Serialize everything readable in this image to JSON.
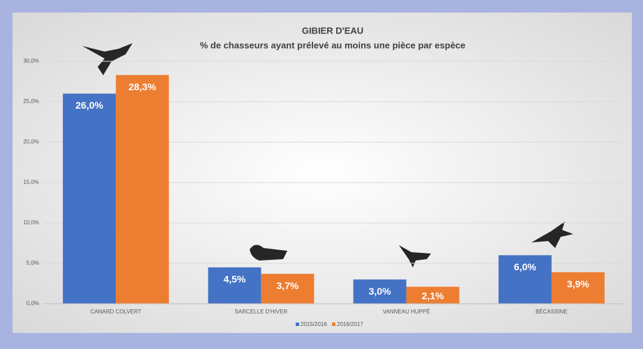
{
  "chart_data": {
    "type": "bar",
    "title": "GIBIER D'EAU",
    "subtitle": "% de chasseurs ayant prélevé au moins une pièce par espèce",
    "categories": [
      "CANARD COLVERT",
      "SARCELLE D'HIVER",
      "VANNEAU HUPPÉ",
      "BÉCASSINE"
    ],
    "series": [
      {
        "name": "2015/2016",
        "color": "#4472c4",
        "values": [
          26.0,
          4.5,
          3.0,
          6.0
        ],
        "value_labels": [
          "26,0%",
          "4,5%",
          "3,0%",
          "6,0%"
        ]
      },
      {
        "name": "2016/2017",
        "color": "#ed7d31",
        "values": [
          28.3,
          3.7,
          2.1,
          3.9
        ],
        "value_labels": [
          "28,3%",
          "3,7%",
          "2,1%",
          "3,9%"
        ]
      }
    ],
    "ylim": [
      0,
      30
    ],
    "yticks": [
      {
        "value": 0,
        "label": "0,0%"
      },
      {
        "value": 5,
        "label": "5,0%"
      },
      {
        "value": 10,
        "label": "10,0%"
      },
      {
        "value": 15,
        "label": "15,0%"
      },
      {
        "value": 20,
        "label": "20,0%"
      },
      {
        "value": 25,
        "label": "25,0%"
      },
      {
        "value": 30,
        "label": "30,0%"
      }
    ],
    "grid": true,
    "legend": "bottom"
  }
}
